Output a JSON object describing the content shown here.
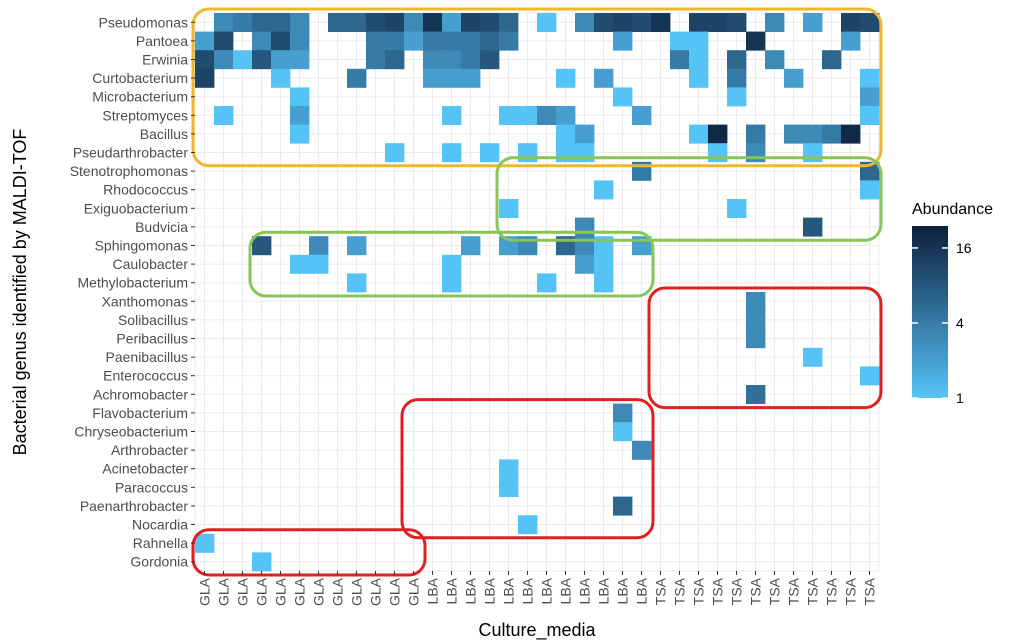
{
  "chart_data": {
    "type": "heatmap",
    "xlabel": "Culture_media",
    "ylabel": "Bacterial genus identified by MALDI-TOF",
    "x": [
      "GLA",
      "GLA",
      "GLA",
      "GLA",
      "GLA",
      "GLA",
      "GLA",
      "GLA",
      "GLA",
      "GLA",
      "GLA",
      "GLA",
      "LBA",
      "LBA",
      "LBA",
      "LBA",
      "LBA",
      "LBA",
      "LBA",
      "LBA",
      "LBA",
      "LBA",
      "LBA",
      "LBA",
      "TSA",
      "TSA",
      "TSA",
      "TSA",
      "TSA",
      "TSA",
      "TSA",
      "TSA",
      "TSA",
      "TSA",
      "TSA",
      "TSA"
    ],
    "y": [
      "Pseudomonas",
      "Pantoea",
      "Erwinia",
      "Curtobacterium",
      "Microbacterium",
      "Streptomyces",
      "Bacillus",
      "Pseudarthrobacter",
      "Stenotrophomonas",
      "Rhodococcus",
      "Exiguobacterium",
      "Budvicia",
      "Sphingomonas",
      "Caulobacter",
      "Methylobacterium",
      "Xanthomonas",
      "Solibacillus",
      "Peribacillus",
      "Paenibacillus",
      "Enterococcus",
      "Achromobacter",
      "Flavobacterium",
      "Chryseobacterium",
      "Arthrobacter",
      "Acinetobacter",
      "Paracoccus",
      "Paenarthrobacter",
      "Nocardia",
      "Rahnella",
      "Gordonia"
    ],
    "values": [
      [
        0,
        3,
        4,
        6,
        6,
        3,
        0,
        6,
        6,
        10,
        12,
        3,
        16,
        2,
        12,
        10,
        6,
        0,
        1,
        0,
        3,
        10,
        12,
        10,
        16,
        0,
        12,
        12,
        10,
        0,
        3,
        0,
        2,
        0,
        12,
        10
      ],
      [
        2,
        10,
        0,
        3,
        10,
        3,
        0,
        0,
        0,
        4,
        4,
        2,
        4,
        4,
        4,
        6,
        4,
        0,
        0,
        0,
        0,
        0,
        2,
        0,
        0,
        1,
        1,
        0,
        0,
        16,
        0,
        0,
        0,
        0,
        2,
        0
      ],
      [
        10,
        3,
        1,
        8,
        2,
        2,
        0,
        0,
        0,
        4,
        6,
        0,
        3,
        3,
        4,
        8,
        0,
        0,
        0,
        0,
        0,
        0,
        0,
        0,
        0,
        4,
        1,
        0,
        6,
        0,
        3,
        0,
        0,
        6,
        0,
        0
      ],
      [
        12,
        0,
        0,
        0,
        1,
        0,
        0,
        0,
        4,
        0,
        0,
        0,
        2,
        2,
        2,
        0,
        0,
        0,
        0,
        1,
        0,
        2,
        0,
        0,
        0,
        0,
        1,
        0,
        4,
        0,
        0,
        2,
        0,
        0,
        0,
        1
      ],
      [
        0,
        0,
        0,
        0,
        0,
        1,
        0,
        0,
        0,
        0,
        0,
        0,
        0,
        0,
        0,
        0,
        0,
        0,
        0,
        0,
        0,
        0,
        1,
        0,
        0,
        0,
        0,
        0,
        1,
        0,
        0,
        0,
        0,
        0,
        0,
        2
      ],
      [
        0,
        1,
        0,
        0,
        0,
        2,
        0,
        0,
        0,
        0,
        0,
        0,
        0,
        1,
        0,
        0,
        1,
        1,
        3,
        2,
        0,
        0,
        0,
        2,
        0,
        0,
        0,
        0,
        0,
        0,
        0,
        0,
        0,
        0,
        0,
        1
      ],
      [
        0,
        0,
        0,
        0,
        0,
        1,
        0,
        0,
        0,
        0,
        0,
        0,
        0,
        0,
        0,
        0,
        0,
        0,
        0,
        1,
        2,
        0,
        0,
        0,
        0,
        0,
        1,
        20,
        0,
        4,
        0,
        3,
        3,
        4,
        20,
        0
      ],
      [
        0,
        0,
        0,
        0,
        0,
        0,
        0,
        0,
        0,
        0,
        1,
        0,
        0,
        1,
        0,
        1,
        0,
        1,
        0,
        1,
        1,
        0,
        0,
        0,
        0,
        0,
        0,
        1,
        0,
        3,
        0,
        0,
        1,
        0,
        0,
        0
      ],
      [
        0,
        0,
        0,
        0,
        0,
        0,
        0,
        0,
        0,
        0,
        0,
        0,
        0,
        0,
        0,
        0,
        0,
        0,
        0,
        0,
        0,
        0,
        0,
        4,
        0,
        0,
        0,
        0,
        0,
        0,
        0,
        0,
        0,
        0,
        0,
        6
      ],
      [
        0,
        0,
        0,
        0,
        0,
        0,
        0,
        0,
        0,
        0,
        0,
        0,
        0,
        0,
        0,
        0,
        0,
        0,
        0,
        0,
        0,
        1,
        0,
        0,
        0,
        0,
        0,
        0,
        0,
        0,
        0,
        0,
        0,
        0,
        0,
        1
      ],
      [
        0,
        0,
        0,
        0,
        0,
        0,
        0,
        0,
        0,
        0,
        0,
        0,
        0,
        0,
        0,
        0,
        1,
        0,
        0,
        0,
        0,
        0,
        0,
        0,
        0,
        0,
        0,
        0,
        1,
        0,
        0,
        0,
        0,
        0,
        0,
        0
      ],
      [
        0,
        0,
        0,
        0,
        0,
        0,
        0,
        0,
        0,
        0,
        0,
        0,
        0,
        0,
        0,
        0,
        0,
        0,
        0,
        0,
        3,
        0,
        0,
        0,
        0,
        0,
        0,
        0,
        0,
        0,
        0,
        0,
        8,
        0,
        0,
        0
      ],
      [
        0,
        0,
        0,
        8,
        0,
        0,
        3,
        0,
        2,
        0,
        0,
        0,
        0,
        0,
        2,
        0,
        2,
        3,
        0,
        6,
        3,
        1,
        0,
        2,
        0,
        0,
        0,
        0,
        0,
        0,
        0,
        0,
        0,
        0,
        0,
        0
      ],
      [
        0,
        0,
        0,
        0,
        0,
        1,
        1,
        0,
        0,
        0,
        0,
        0,
        0,
        1,
        0,
        0,
        0,
        0,
        0,
        0,
        2,
        1,
        0,
        0,
        0,
        0,
        0,
        0,
        0,
        0,
        0,
        0,
        0,
        0,
        0,
        0
      ],
      [
        0,
        0,
        0,
        0,
        0,
        0,
        0,
        0,
        1,
        0,
        0,
        0,
        0,
        1,
        0,
        0,
        0,
        0,
        1,
        0,
        0,
        1,
        0,
        0,
        0,
        0,
        0,
        0,
        0,
        0,
        0,
        0,
        0,
        0,
        0,
        0
      ],
      [
        0,
        0,
        0,
        0,
        0,
        0,
        0,
        0,
        0,
        0,
        0,
        0,
        0,
        0,
        0,
        0,
        0,
        0,
        0,
        0,
        0,
        0,
        0,
        0,
        0,
        0,
        0,
        0,
        0,
        3,
        0,
        0,
        0,
        0,
        0,
        0
      ],
      [
        0,
        0,
        0,
        0,
        0,
        0,
        0,
        0,
        0,
        0,
        0,
        0,
        0,
        0,
        0,
        0,
        0,
        0,
        0,
        0,
        0,
        0,
        0,
        0,
        0,
        0,
        0,
        0,
        0,
        3,
        0,
        0,
        0,
        0,
        0,
        0
      ],
      [
        0,
        0,
        0,
        0,
        0,
        0,
        0,
        0,
        0,
        0,
        0,
        0,
        0,
        0,
        0,
        0,
        0,
        0,
        0,
        0,
        0,
        0,
        0,
        0,
        0,
        0,
        0,
        0,
        0,
        3,
        0,
        0,
        0,
        0,
        0,
        0
      ],
      [
        0,
        0,
        0,
        0,
        0,
        0,
        0,
        0,
        0,
        0,
        0,
        0,
        0,
        0,
        0,
        0,
        0,
        0,
        0,
        0,
        0,
        0,
        0,
        0,
        0,
        0,
        0,
        0,
        0,
        0,
        0,
        0,
        1,
        0,
        0,
        0
      ],
      [
        0,
        0,
        0,
        0,
        0,
        0,
        0,
        0,
        0,
        0,
        0,
        0,
        0,
        0,
        0,
        0,
        0,
        0,
        0,
        0,
        0,
        0,
        0,
        0,
        0,
        0,
        0,
        0,
        0,
        0,
        0,
        0,
        0,
        0,
        0,
        1
      ],
      [
        0,
        0,
        0,
        0,
        0,
        0,
        0,
        0,
        0,
        0,
        0,
        0,
        0,
        0,
        0,
        0,
        0,
        0,
        0,
        0,
        0,
        0,
        0,
        0,
        0,
        0,
        0,
        0,
        0,
        5,
        0,
        0,
        0,
        0,
        0,
        0
      ],
      [
        0,
        0,
        0,
        0,
        0,
        0,
        0,
        0,
        0,
        0,
        0,
        0,
        0,
        0,
        0,
        0,
        0,
        0,
        0,
        0,
        0,
        0,
        3,
        0,
        0,
        0,
        0,
        0,
        0,
        0,
        0,
        0,
        0,
        0,
        0,
        0
      ],
      [
        0,
        0,
        0,
        0,
        0,
        0,
        0,
        0,
        0,
        0,
        0,
        0,
        0,
        0,
        0,
        0,
        0,
        0,
        0,
        0,
        0,
        0,
        1,
        0,
        0,
        0,
        0,
        0,
        0,
        0,
        0,
        0,
        0,
        0,
        0,
        0
      ],
      [
        0,
        0,
        0,
        0,
        0,
        0,
        0,
        0,
        0,
        0,
        0,
        0,
        0,
        0,
        0,
        0,
        0,
        0,
        0,
        0,
        0,
        0,
        0,
        3,
        0,
        0,
        0,
        0,
        0,
        0,
        0,
        0,
        0,
        0,
        0,
        0
      ],
      [
        0,
        0,
        0,
        0,
        0,
        0,
        0,
        0,
        0,
        0,
        0,
        0,
        0,
        0,
        0,
        0,
        1,
        0,
        0,
        0,
        0,
        0,
        0,
        0,
        0,
        0,
        0,
        0,
        0,
        0,
        0,
        0,
        0,
        0,
        0,
        0
      ],
      [
        0,
        0,
        0,
        0,
        0,
        0,
        0,
        0,
        0,
        0,
        0,
        0,
        0,
        0,
        0,
        0,
        1,
        0,
        0,
        0,
        0,
        0,
        0,
        0,
        0,
        0,
        0,
        0,
        0,
        0,
        0,
        0,
        0,
        0,
        0,
        0
      ],
      [
        0,
        0,
        0,
        0,
        0,
        0,
        0,
        0,
        0,
        0,
        0,
        0,
        0,
        0,
        0,
        0,
        0,
        0,
        0,
        0,
        0,
        0,
        6,
        0,
        0,
        0,
        0,
        0,
        0,
        0,
        0,
        0,
        0,
        0,
        0,
        0
      ],
      [
        0,
        0,
        0,
        0,
        0,
        0,
        0,
        0,
        0,
        0,
        0,
        0,
        0,
        0,
        0,
        0,
        0,
        1,
        0,
        0,
        0,
        0,
        0,
        0,
        0,
        0,
        0,
        0,
        0,
        0,
        0,
        0,
        0,
        0,
        0,
        0
      ],
      [
        1,
        0,
        0,
        0,
        0,
        0,
        0,
        0,
        0,
        0,
        0,
        0,
        0,
        0,
        0,
        0,
        0,
        0,
        0,
        0,
        0,
        0,
        0,
        0,
        0,
        0,
        0,
        0,
        0,
        0,
        0,
        0,
        0,
        0,
        0,
        0
      ],
      [
        0,
        0,
        0,
        1,
        0,
        0,
        0,
        0,
        0,
        0,
        0,
        0,
        0,
        0,
        0,
        0,
        0,
        0,
        0,
        0,
        0,
        0,
        0,
        0,
        0,
        0,
        0,
        0,
        0,
        0,
        0,
        0,
        0,
        0,
        0,
        0
      ]
    ],
    "legend": {
      "title": "Abundance",
      "scale": "log",
      "ticks": [
        1,
        4,
        16
      ],
      "range": [
        1,
        24
      ],
      "low_color": "#56c3f7",
      "high_color": "#0d1f3c"
    },
    "highlight_groups": [
      {
        "color": "#f0b72b",
        "rows": [
          "Pseudomonas",
          "Pseudarthrobacter"
        ],
        "cols": [
          0,
          35
        ]
      },
      {
        "color": "#88c457",
        "rows": [
          "Stenotrophomonas",
          "Budvicia"
        ],
        "cols": [
          16,
          35
        ]
      },
      {
        "color": "#88c457",
        "rows": [
          "Sphingomonas",
          "Methylobacterium"
        ],
        "cols": [
          3,
          23
        ]
      },
      {
        "color": "#e02020",
        "rows": [
          "Xanthomonas",
          "Achromobacter"
        ],
        "cols": [
          24,
          35
        ]
      },
      {
        "color": "#e02020",
        "rows": [
          "Flavobacterium",
          "Nocardia"
        ],
        "cols": [
          11,
          23
        ]
      },
      {
        "color": "#e02020",
        "rows": [
          "Rahnella",
          "Gordonia"
        ],
        "cols": [
          0,
          11
        ]
      }
    ],
    "grid": true
  }
}
